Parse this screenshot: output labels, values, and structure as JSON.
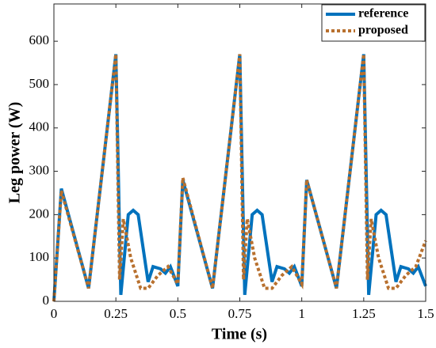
{
  "chart_data": {
    "type": "line",
    "xlabel": "Time (s)",
    "ylabel": "Leg power (W)",
    "xlim": [
      0,
      1.5
    ],
    "xticks": [
      0,
      0.25,
      0.5,
      0.75,
      1,
      1.25,
      1.5
    ],
    "ylim": [
      0,
      686
    ],
    "yticks": [
      0,
      100,
      200,
      300,
      400,
      500,
      600
    ],
    "legend": "top-right",
    "series": [
      {
        "name": "reference",
        "color": "#0072bd",
        "style": "solid",
        "x": [
          0,
          0.03,
          0.14,
          0.25,
          0.27,
          0.3,
          0.32,
          0.34,
          0.38,
          0.4,
          0.43,
          0.45,
          0.47,
          0.5,
          0.52,
          0.64,
          0.75,
          0.77,
          0.8,
          0.82,
          0.84,
          0.88,
          0.9,
          0.93,
          0.95,
          0.97,
          1.0,
          1.02,
          1.14,
          1.25,
          1.27,
          1.3,
          1.32,
          1.34,
          1.38,
          1.4,
          1.43,
          1.45,
          1.47,
          1.5
        ],
        "values": [
          0,
          260,
          30,
          570,
          15,
          200,
          210,
          200,
          45,
          80,
          75,
          65,
          80,
          35,
          280,
          30,
          570,
          15,
          200,
          210,
          200,
          45,
          80,
          75,
          65,
          80,
          35,
          280,
          30,
          570,
          15,
          200,
          210,
          200,
          45,
          80,
          75,
          65,
          80,
          35
        ]
      },
      {
        "name": "proposed",
        "color": "#b8702e",
        "style": "dotted",
        "x": [
          0,
          0.03,
          0.14,
          0.25,
          0.265,
          0.28,
          0.31,
          0.35,
          0.38,
          0.42,
          0.46,
          0.5,
          0.52,
          0.64,
          0.75,
          0.765,
          0.78,
          0.81,
          0.85,
          0.88,
          0.92,
          0.96,
          1.0,
          1.02,
          1.14,
          1.25,
          1.265,
          1.28,
          1.31,
          1.35,
          1.38,
          1.42,
          1.46,
          1.5
        ],
        "values": [
          0,
          255,
          30,
          570,
          50,
          190,
          100,
          30,
          30,
          60,
          80,
          40,
          285,
          30,
          570,
          50,
          190,
          100,
          30,
          30,
          60,
          80,
          40,
          280,
          30,
          570,
          50,
          190,
          100,
          30,
          30,
          60,
          80,
          140
        ]
      }
    ]
  }
}
